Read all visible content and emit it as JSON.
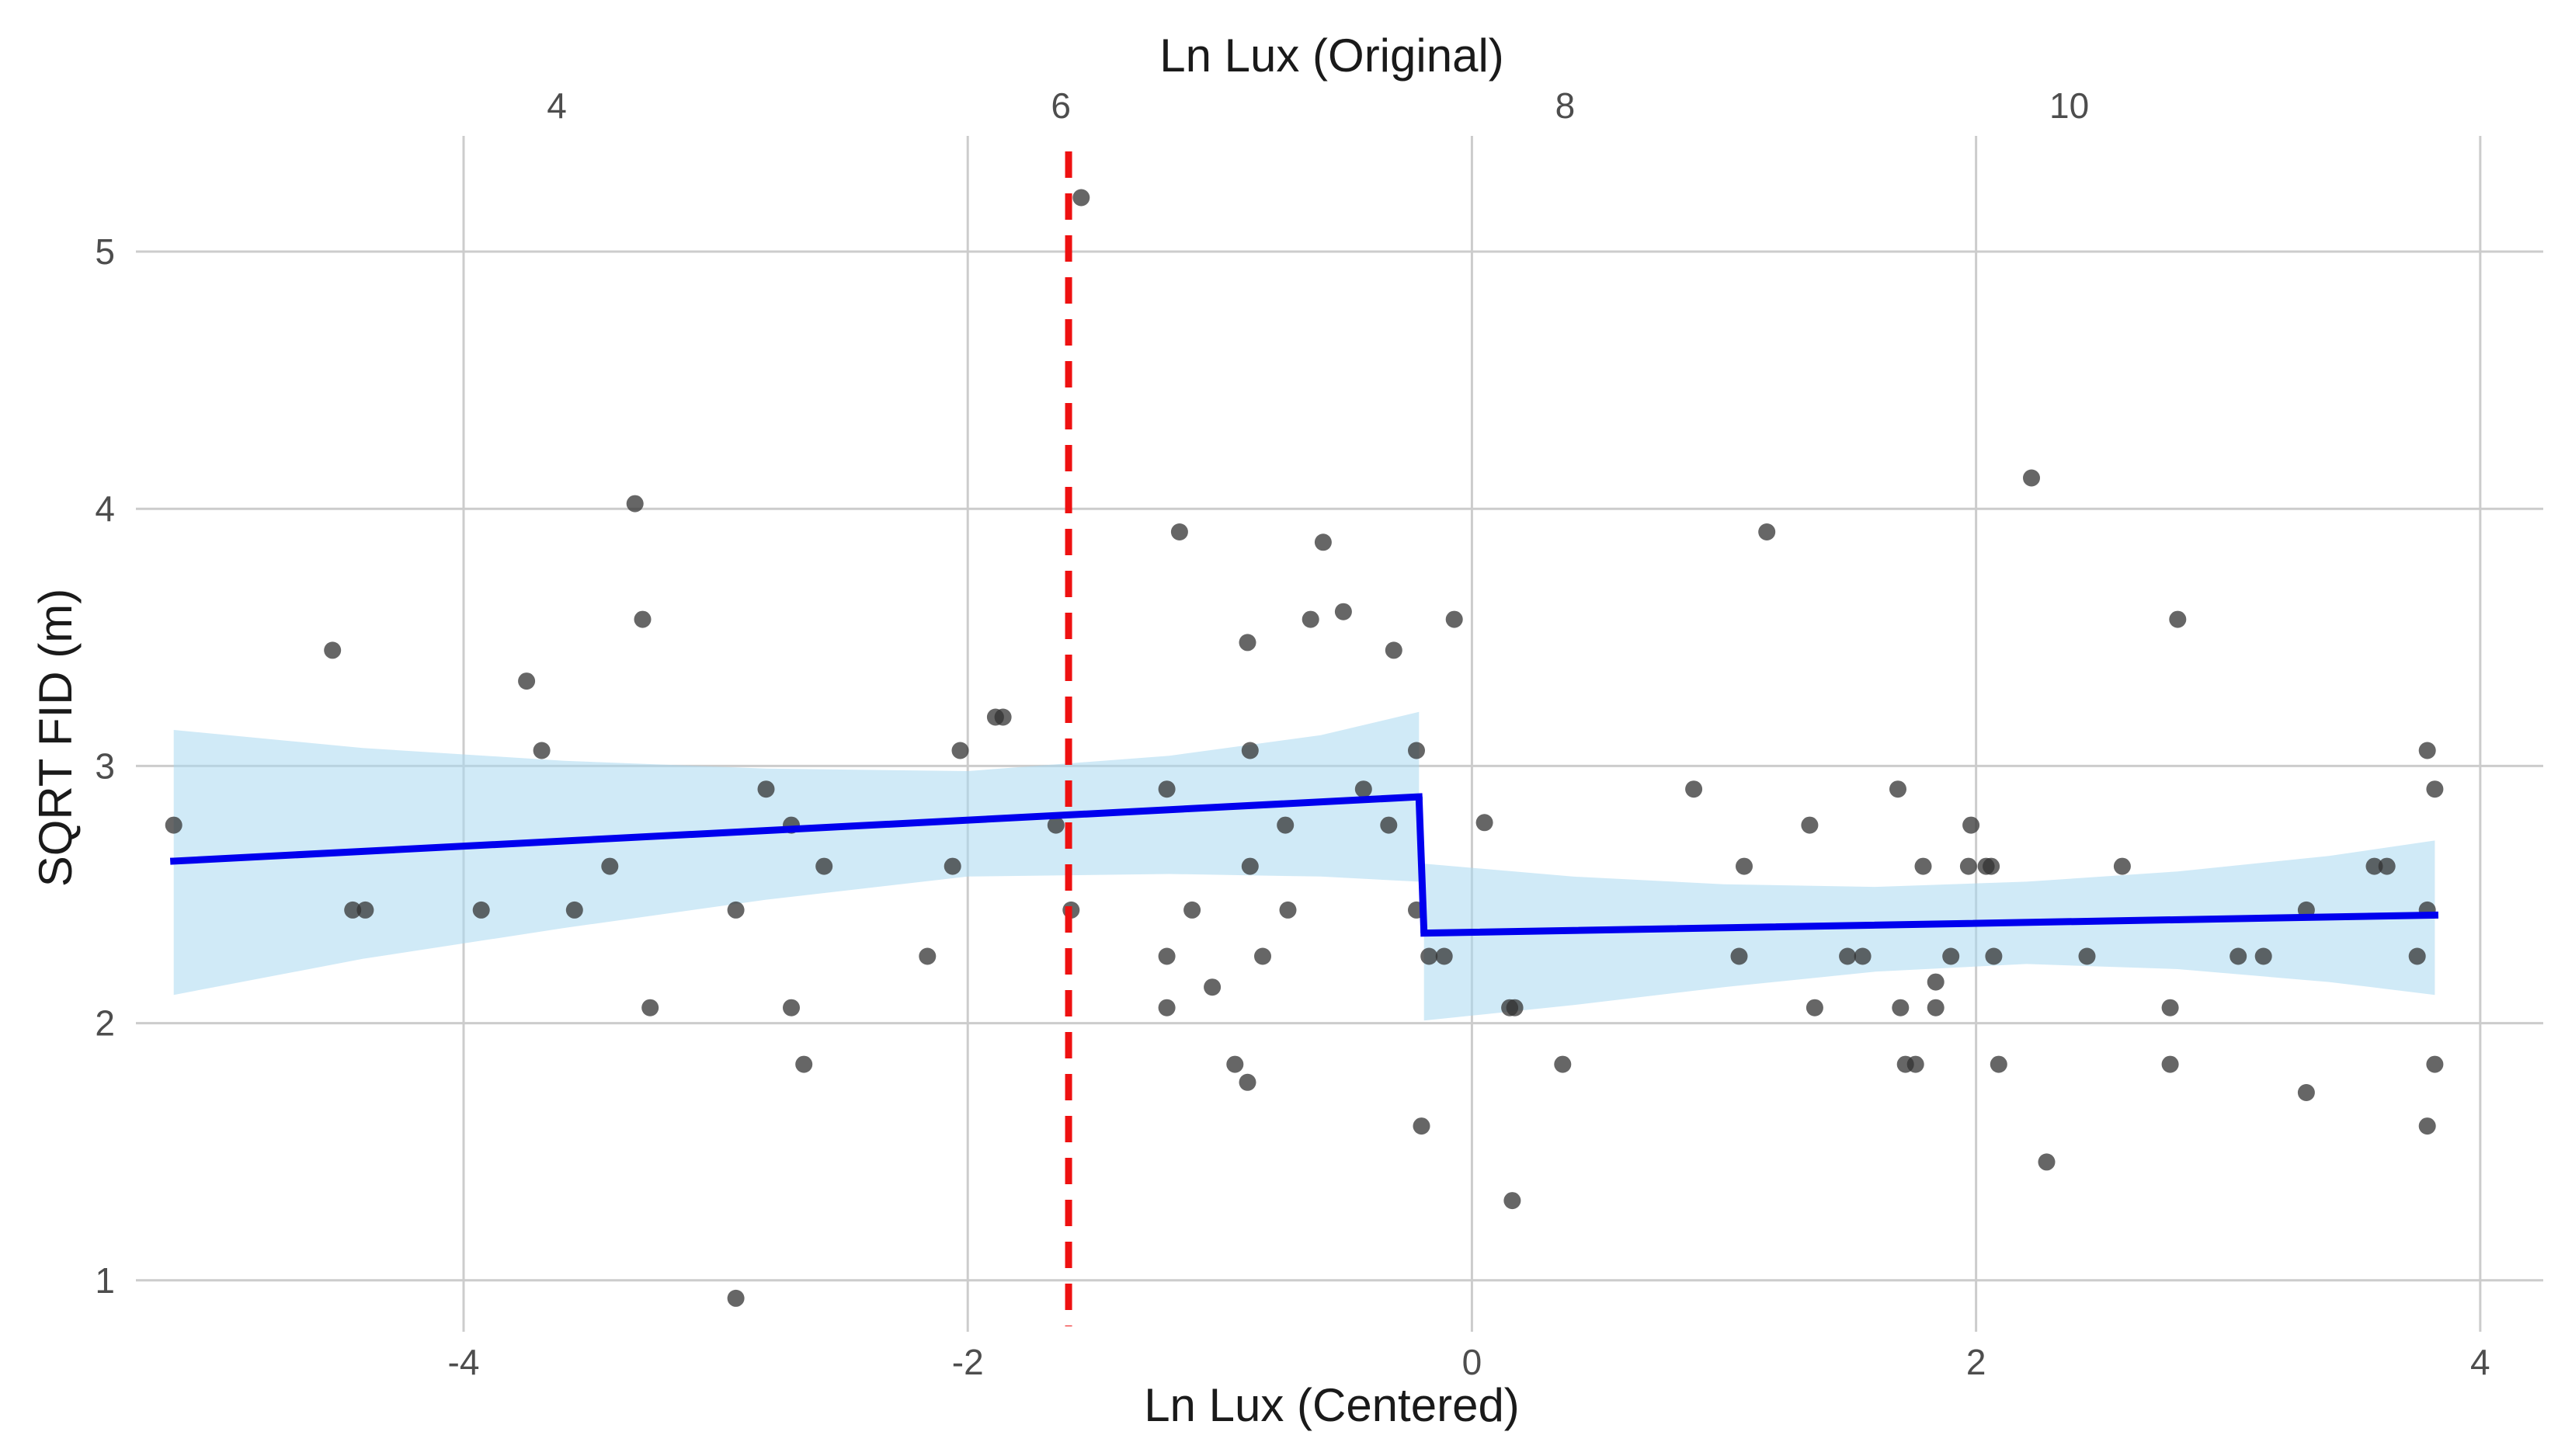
{
  "chart_data": {
    "type": "scatter",
    "title": "",
    "xlabel": "Ln Lux (Centered)",
    "ylabel": "SQRT FID (m)",
    "x2label": "Ln Lux (Original)",
    "xlim": [
      -5.3,
      4.25
    ],
    "ylim": [
      0.8,
      5.45
    ],
    "x_ticks": [
      -4,
      -2,
      0,
      2,
      4
    ],
    "x_tick_labels": [
      "-4",
      "-2",
      "0",
      "2",
      "4"
    ],
    "x2_ticks": [
      -4,
      -2,
      0,
      2
    ],
    "x2_tick_labels": [
      "4",
      "6",
      "8",
      "10"
    ],
    "y_ticks": [
      1,
      2,
      3,
      4,
      5
    ],
    "y_tick_labels": [
      "1",
      "2",
      "3",
      "4",
      "5"
    ],
    "grid": true,
    "threshold_x": -1.6,
    "colors": {
      "points": "#333333",
      "fit_line": "#0000ee",
      "ribbon": "#aad8f0",
      "threshold": "#ee1111",
      "grid": "#cccccc"
    },
    "points": [
      {
        "x": -5.15,
        "y": 2.77
      },
      {
        "x": -4.52,
        "y": 3.45
      },
      {
        "x": -4.44,
        "y": 2.44
      },
      {
        "x": -4.39,
        "y": 2.44
      },
      {
        "x": -3.93,
        "y": 2.44
      },
      {
        "x": -3.75,
        "y": 3.33
      },
      {
        "x": -3.69,
        "y": 3.06
      },
      {
        "x": -3.56,
        "y": 2.44
      },
      {
        "x": -3.42,
        "y": 2.61
      },
      {
        "x": -3.32,
        "y": 4.02
      },
      {
        "x": -3.29,
        "y": 3.57
      },
      {
        "x": -3.26,
        "y": 2.06
      },
      {
        "x": -2.92,
        "y": 2.44
      },
      {
        "x": -2.92,
        "y": 0.93
      },
      {
        "x": -2.8,
        "y": 2.91
      },
      {
        "x": -2.7,
        "y": 2.77
      },
      {
        "x": -2.7,
        "y": 2.06
      },
      {
        "x": -2.65,
        "y": 1.84
      },
      {
        "x": -2.57,
        "y": 2.61
      },
      {
        "x": -2.16,
        "y": 2.26
      },
      {
        "x": -2.06,
        "y": 2.61
      },
      {
        "x": -2.03,
        "y": 3.06
      },
      {
        "x": -1.89,
        "y": 3.19
      },
      {
        "x": -1.86,
        "y": 3.19
      },
      {
        "x": -1.65,
        "y": 2.77
      },
      {
        "x": -1.59,
        "y": 2.44
      },
      {
        "x": -1.55,
        "y": 5.21
      },
      {
        "x": -1.21,
        "y": 2.91
      },
      {
        "x": -1.21,
        "y": 2.26
      },
      {
        "x": -1.21,
        "y": 2.06
      },
      {
        "x": -1.16,
        "y": 3.91
      },
      {
        "x": -1.11,
        "y": 2.44
      },
      {
        "x": -1.03,
        "y": 2.14
      },
      {
        "x": -0.94,
        "y": 1.84
      },
      {
        "x": -0.89,
        "y": 1.77
      },
      {
        "x": -0.89,
        "y": 3.48
      },
      {
        "x": -0.88,
        "y": 3.06
      },
      {
        "x": -0.88,
        "y": 2.61
      },
      {
        "x": -0.83,
        "y": 2.26
      },
      {
        "x": -0.74,
        "y": 2.77
      },
      {
        "x": -0.73,
        "y": 2.44
      },
      {
        "x": -0.64,
        "y": 3.57
      },
      {
        "x": -0.59,
        "y": 3.87
      },
      {
        "x": -0.51,
        "y": 3.6
      },
      {
        "x": -0.43,
        "y": 2.91
      },
      {
        "x": -0.33,
        "y": 2.77
      },
      {
        "x": -0.31,
        "y": 3.45
      },
      {
        "x": -0.22,
        "y": 3.06
      },
      {
        "x": -0.22,
        "y": 2.44
      },
      {
        "x": -0.2,
        "y": 1.6
      },
      {
        "x": -0.17,
        "y": 2.26
      },
      {
        "x": -0.11,
        "y": 2.26
      },
      {
        "x": -0.07,
        "y": 3.57
      },
      {
        "x": 0.05,
        "y": 2.78
      },
      {
        "x": 0.15,
        "y": 2.06
      },
      {
        "x": 0.16,
        "y": 1.31
      },
      {
        "x": 0.17,
        "y": 2.06
      },
      {
        "x": 0.36,
        "y": 1.84
      },
      {
        "x": 0.88,
        "y": 2.91
      },
      {
        "x": 1.06,
        "y": 2.26
      },
      {
        "x": 1.08,
        "y": 2.61
      },
      {
        "x": 1.17,
        "y": 3.91
      },
      {
        "x": 1.34,
        "y": 2.77
      },
      {
        "x": 1.36,
        "y": 2.06
      },
      {
        "x": 1.49,
        "y": 2.26
      },
      {
        "x": 1.55,
        "y": 2.26
      },
      {
        "x": 1.69,
        "y": 2.91
      },
      {
        "x": 1.7,
        "y": 2.06
      },
      {
        "x": 1.72,
        "y": 1.84
      },
      {
        "x": 1.76,
        "y": 1.84
      },
      {
        "x": 1.79,
        "y": 2.61
      },
      {
        "x": 1.84,
        "y": 2.16
      },
      {
        "x": 1.84,
        "y": 2.06
      },
      {
        "x": 1.9,
        "y": 2.26
      },
      {
        "x": 1.97,
        "y": 2.61
      },
      {
        "x": 1.98,
        "y": 2.77
      },
      {
        "x": 2.04,
        "y": 2.61
      },
      {
        "x": 2.06,
        "y": 2.61
      },
      {
        "x": 2.07,
        "y": 2.26
      },
      {
        "x": 2.09,
        "y": 1.84
      },
      {
        "x": 2.22,
        "y": 4.12
      },
      {
        "x": 2.28,
        "y": 1.46
      },
      {
        "x": 2.44,
        "y": 2.26
      },
      {
        "x": 2.58,
        "y": 2.61
      },
      {
        "x": 2.77,
        "y": 2.06
      },
      {
        "x": 2.77,
        "y": 1.84
      },
      {
        "x": 2.8,
        "y": 3.57
      },
      {
        "x": 3.04,
        "y": 2.26
      },
      {
        "x": 3.14,
        "y": 2.26
      },
      {
        "x": 3.31,
        "y": 2.44
      },
      {
        "x": 3.31,
        "y": 1.73
      },
      {
        "x": 3.58,
        "y": 2.61
      },
      {
        "x": 3.63,
        "y": 2.61
      },
      {
        "x": 3.75,
        "y": 2.26
      },
      {
        "x": 3.79,
        "y": 3.06
      },
      {
        "x": 3.79,
        "y": 2.44
      },
      {
        "x": 3.79,
        "y": 1.6
      },
      {
        "x": 3.82,
        "y": 2.91
      },
      {
        "x": 3.82,
        "y": 1.84
      }
    ],
    "fit_segments": [
      {
        "x": [
          -5.15,
          -0.21
        ],
        "y": [
          2.63,
          2.88
        ],
        "ribbon_x": [
          -5.15,
          -4.4,
          -3.6,
          -2.8,
          -2.0,
          -1.2,
          -0.6,
          -0.21
        ],
        "ribbon_upper": [
          3.14,
          3.07,
          3.02,
          2.99,
          2.98,
          3.04,
          3.12,
          3.21
        ],
        "ribbon_lower": [
          2.11,
          2.25,
          2.37,
          2.48,
          2.57,
          2.58,
          2.57,
          2.55
        ]
      },
      {
        "x": [
          -0.19,
          3.82
        ],
        "y": [
          2.35,
          2.42
        ],
        "ribbon_x": [
          -0.19,
          0.4,
          1.0,
          1.6,
          2.2,
          2.8,
          3.4,
          3.82
        ],
        "ribbon_upper": [
          2.62,
          2.57,
          2.54,
          2.53,
          2.55,
          2.59,
          2.65,
          2.71
        ],
        "ribbon_lower": [
          2.01,
          2.07,
          2.14,
          2.2,
          2.23,
          2.21,
          2.16,
          2.11
        ]
      }
    ],
    "step_link": {
      "x": [
        -0.21,
        -0.19
      ],
      "y": [
        2.88,
        2.35
      ]
    }
  }
}
